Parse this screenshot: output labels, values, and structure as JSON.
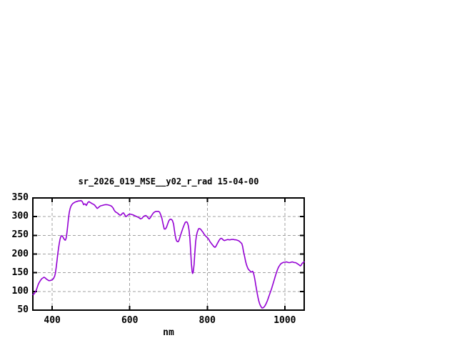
{
  "chart_data": {
    "type": "line",
    "title": "sr_2026_019_MSE__y02_r_rad 15-04-00",
    "xlabel": "nm",
    "ylabel": "",
    "x_range": [
      350,
      1050
    ],
    "y_range": [
      50,
      350
    ],
    "x_ticks": [
      400,
      600,
      800,
      1000
    ],
    "y_ticks": [
      50,
      100,
      150,
      200,
      250,
      300,
      350
    ],
    "grid": true,
    "legend_position": "none",
    "line_color": "#9400d3",
    "grid_color": "#a0a0a0",
    "border_color": "#000000",
    "background_color": "#ffffff",
    "series": [
      {
        "name": "sr_2026_019_MSE__y02_r_rad",
        "points": [
          [
            350,
            92
          ],
          [
            352,
            92
          ],
          [
            355,
            96
          ],
          [
            358,
            101
          ],
          [
            361,
            110
          ],
          [
            364,
            119
          ],
          [
            367,
            125
          ],
          [
            370,
            130
          ],
          [
            373,
            134
          ],
          [
            376,
            136
          ],
          [
            379,
            138
          ],
          [
            382,
            136
          ],
          [
            385,
            133
          ],
          [
            388,
            131
          ],
          [
            391,
            129
          ],
          [
            394,
            129
          ],
          [
            397,
            130
          ],
          [
            400,
            131
          ],
          [
            403,
            134
          ],
          [
            406,
            140
          ],
          [
            408,
            148
          ],
          [
            410,
            163
          ],
          [
            412,
            180
          ],
          [
            414,
            197
          ],
          [
            416,
            213
          ],
          [
            418,
            227
          ],
          [
            420,
            239
          ],
          [
            422,
            246
          ],
          [
            424,
            249
          ],
          [
            426,
            248
          ],
          [
            428,
            245
          ],
          [
            430,
            241
          ],
          [
            432,
            238
          ],
          [
            434,
            237
          ],
          [
            436,
            243
          ],
          [
            438,
            258
          ],
          [
            440,
            277
          ],
          [
            442,
            296
          ],
          [
            444,
            311
          ],
          [
            446,
            321
          ],
          [
            448,
            327
          ],
          [
            450,
            331
          ],
          [
            453,
            335
          ],
          [
            456,
            337
          ],
          [
            459,
            339
          ],
          [
            462,
            340
          ],
          [
            465,
            341
          ],
          [
            468,
            342
          ],
          [
            471,
            342
          ],
          [
            474,
            343
          ],
          [
            477,
            341
          ],
          [
            479,
            337
          ],
          [
            481,
            332
          ],
          [
            483,
            334
          ],
          [
            485,
            334
          ],
          [
            488,
            330
          ],
          [
            490,
            334
          ],
          [
            492,
            338
          ],
          [
            495,
            340
          ],
          [
            498,
            338
          ],
          [
            501,
            336
          ],
          [
            504,
            334
          ],
          [
            507,
            333
          ],
          [
            510,
            330
          ],
          [
            513,
            326
          ],
          [
            516,
            322
          ],
          [
            519,
            324
          ],
          [
            522,
            327
          ],
          [
            525,
            329
          ],
          [
            529,
            330
          ],
          [
            533,
            331
          ],
          [
            537,
            332
          ],
          [
            541,
            332
          ],
          [
            545,
            331
          ],
          [
            549,
            330
          ],
          [
            553,
            328
          ],
          [
            557,
            323
          ],
          [
            560,
            317
          ],
          [
            563,
            313
          ],
          [
            566,
            311
          ],
          [
            569,
            309
          ],
          [
            572,
            306
          ],
          [
            575,
            304
          ],
          [
            578,
            305
          ],
          [
            581,
            309
          ],
          [
            584,
            310
          ],
          [
            587,
            305
          ],
          [
            590,
            300
          ],
          [
            593,
            302
          ],
          [
            596,
            305
          ],
          [
            600,
            307
          ],
          [
            604,
            306
          ],
          [
            608,
            305
          ],
          [
            612,
            303
          ],
          [
            616,
            301
          ],
          [
            620,
            299
          ],
          [
            624,
            297
          ],
          [
            628,
            294
          ],
          [
            632,
            296
          ],
          [
            635,
            300
          ],
          [
            638,
            302
          ],
          [
            641,
            303
          ],
          [
            644,
            301
          ],
          [
            647,
            297
          ],
          [
            650,
            294
          ],
          [
            653,
            297
          ],
          [
            656,
            302
          ],
          [
            659,
            307
          ],
          [
            662,
            311
          ],
          [
            665,
            313
          ],
          [
            668,
            314
          ],
          [
            671,
            314
          ],
          [
            674,
            314
          ],
          [
            677,
            312
          ],
          [
            680,
            305
          ],
          [
            683,
            295
          ],
          [
            686,
            280
          ],
          [
            689,
            267
          ],
          [
            692,
            267
          ],
          [
            695,
            272
          ],
          [
            698,
            281
          ],
          [
            701,
            289
          ],
          [
            704,
            293
          ],
          [
            707,
            293
          ],
          [
            710,
            290
          ],
          [
            713,
            280
          ],
          [
            715,
            266
          ],
          [
            717,
            252
          ],
          [
            719,
            241
          ],
          [
            721,
            235
          ],
          [
            723,
            233
          ],
          [
            725,
            233
          ],
          [
            727,
            237
          ],
          [
            729,
            243
          ],
          [
            731,
            250
          ],
          [
            734,
            260
          ],
          [
            737,
            269
          ],
          [
            740,
            277
          ],
          [
            743,
            284
          ],
          [
            745,
            286
          ],
          [
            747,
            286
          ],
          [
            749,
            283
          ],
          [
            751,
            276
          ],
          [
            753,
            263
          ],
          [
            755,
            242
          ],
          [
            757,
            212
          ],
          [
            759,
            175
          ],
          [
            761,
            152
          ],
          [
            762,
            148
          ],
          [
            764,
            153
          ],
          [
            766,
            172
          ],
          [
            768,
            205
          ],
          [
            770,
            233
          ],
          [
            772,
            249
          ],
          [
            774,
            258
          ],
          [
            776,
            264
          ],
          [
            778,
            268
          ],
          [
            780,
            268
          ],
          [
            782,
            267
          ],
          [
            784,
            265
          ],
          [
            786,
            262
          ],
          [
            789,
            258
          ],
          [
            792,
            253
          ],
          [
            795,
            249
          ],
          [
            798,
            246
          ],
          [
            801,
            243
          ],
          [
            804,
            239
          ],
          [
            807,
            233
          ],
          [
            810,
            229
          ],
          [
            813,
            225
          ],
          [
            816,
            221
          ],
          [
            818,
            219
          ],
          [
            820,
            218
          ],
          [
            822,
            220
          ],
          [
            824,
            224
          ],
          [
            826,
            228
          ],
          [
            828,
            232
          ],
          [
            830,
            236
          ],
          [
            832,
            239
          ],
          [
            834,
            241
          ],
          [
            836,
            242
          ],
          [
            838,
            241
          ],
          [
            840,
            239
          ],
          [
            842,
            237
          ],
          [
            844,
            236
          ],
          [
            847,
            237
          ],
          [
            850,
            238
          ],
          [
            853,
            239
          ],
          [
            856,
            238
          ],
          [
            859,
            238
          ],
          [
            862,
            239
          ],
          [
            865,
            239
          ],
          [
            868,
            239
          ],
          [
            871,
            238
          ],
          [
            874,
            238
          ],
          [
            877,
            237
          ],
          [
            880,
            236
          ],
          [
            883,
            234
          ],
          [
            886,
            231
          ],
          [
            889,
            228
          ],
          [
            891,
            221
          ],
          [
            893,
            209
          ],
          [
            895,
            199
          ],
          [
            897,
            190
          ],
          [
            899,
            180
          ],
          [
            901,
            172
          ],
          [
            903,
            166
          ],
          [
            905,
            161
          ],
          [
            907,
            158
          ],
          [
            909,
            156
          ],
          [
            911,
            154
          ],
          [
            913,
            152
          ],
          [
            915,
            152
          ],
          [
            917,
            154
          ],
          [
            919,
            150
          ],
          [
            921,
            141
          ],
          [
            923,
            130
          ],
          [
            925,
            118
          ],
          [
            927,
            106
          ],
          [
            929,
            94
          ],
          [
            931,
            83
          ],
          [
            933,
            74
          ],
          [
            935,
            67
          ],
          [
            937,
            62
          ],
          [
            939,
            59
          ],
          [
            941,
            56
          ],
          [
            943,
            56
          ],
          [
            945,
            57
          ],
          [
            947,
            59
          ],
          [
            949,
            62
          ],
          [
            951,
            66
          ],
          [
            953,
            70
          ],
          [
            955,
            75
          ],
          [
            957,
            81
          ],
          [
            959,
            87
          ],
          [
            961,
            93
          ],
          [
            963,
            99
          ],
          [
            965,
            105
          ],
          [
            967,
            111
          ],
          [
            969,
            118
          ],
          [
            971,
            125
          ],
          [
            973,
            132
          ],
          [
            975,
            139
          ],
          [
            977,
            146
          ],
          [
            979,
            152
          ],
          [
            981,
            158
          ],
          [
            983,
            163
          ],
          [
            985,
            167
          ],
          [
            987,
            170
          ],
          [
            989,
            173
          ],
          [
            991,
            175
          ],
          [
            993,
            176
          ],
          [
            995,
            177
          ],
          [
            998,
            178
          ],
          [
            1001,
            178
          ],
          [
            1004,
            179
          ],
          [
            1007,
            178
          ],
          [
            1010,
            177
          ],
          [
            1013,
            177
          ],
          [
            1016,
            178
          ],
          [
            1019,
            179
          ],
          [
            1022,
            178
          ],
          [
            1025,
            177
          ],
          [
            1028,
            177
          ],
          [
            1031,
            175
          ],
          [
            1034,
            173
          ],
          [
            1037,
            171
          ],
          [
            1040,
            168
          ],
          [
            1042,
            170
          ],
          [
            1044,
            174
          ],
          [
            1046,
            176
          ],
          [
            1048,
            178
          ],
          [
            1050,
            179
          ]
        ]
      }
    ]
  }
}
